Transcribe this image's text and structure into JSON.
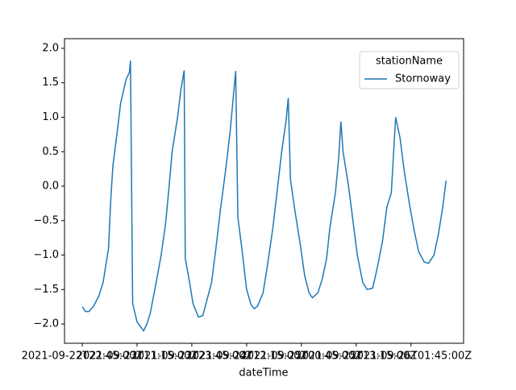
{
  "chart_data": {
    "type": "line",
    "xlabel": "dateTime",
    "legend_title": "stationName",
    "legend": "upper right",
    "x": [
      0,
      3,
      6,
      10,
      15,
      19,
      24,
      26,
      28,
      32,
      35,
      40,
      43,
      44,
      46,
      50,
      56,
      59,
      62,
      65,
      68,
      72,
      76,
      79,
      82,
      87,
      90,
      93,
      94,
      98,
      101,
      106,
      110,
      113,
      118,
      122,
      126,
      131,
      135,
      140,
      142,
      146,
      150,
      154,
      157,
      160,
      165,
      169,
      174,
      178,
      182,
      186,
      188,
      190,
      194,
      199,
      203,
      207,
      210,
      215,
      219,
      223,
      226,
      231,
      234,
      236,
      238,
      243,
      247,
      251,
      256,
      260,
      265,
      269,
      274,
      278,
      282,
      286,
      290,
      294,
      299,
      303,
      307,
      312,
      316,
      321,
      325,
      329,
      332
    ],
    "series": [
      {
        "name": "Stornoway",
        "color": "#1f77b4",
        "values": [
          -1.75,
          -1.82,
          -1.82,
          -1.75,
          -1.6,
          -1.4,
          -0.9,
          -0.2,
          0.3,
          0.8,
          1.2,
          1.55,
          1.65,
          1.82,
          -1.7,
          -1.97,
          -2.1,
          -2.0,
          -1.85,
          -1.6,
          -1.35,
          -1.0,
          -0.55,
          -0.05,
          0.5,
          1.0,
          1.4,
          1.68,
          -1.05,
          -1.4,
          -1.7,
          -1.9,
          -1.88,
          -1.7,
          -1.4,
          -0.9,
          -0.35,
          0.25,
          0.8,
          1.67,
          -0.45,
          -0.95,
          -1.5,
          -1.72,
          -1.78,
          -1.74,
          -1.55,
          -1.15,
          -0.6,
          -0.05,
          0.5,
          0.95,
          1.28,
          0.1,
          -0.35,
          -0.85,
          -1.3,
          -1.55,
          -1.62,
          -1.55,
          -1.35,
          -1.05,
          -0.6,
          -0.1,
          0.4,
          0.94,
          0.5,
          0.0,
          -0.5,
          -1.0,
          -1.4,
          -1.5,
          -1.48,
          -1.2,
          -0.8,
          -0.3,
          -0.1,
          1.0,
          0.7,
          0.2,
          -0.3,
          -0.65,
          -0.95,
          -1.1,
          -1.12,
          -1.0,
          -0.7,
          -0.3,
          0.08
        ]
      }
    ],
    "xlim": [
      -16.2,
      348
    ],
    "xticks": [
      {
        "value": 0,
        "label": "2021-09-22T22:45:00Z"
      },
      {
        "value": 50,
        "label": "2021-09-23T11:15:00Z"
      },
      {
        "value": 100,
        "label": "2021-09-23T23:45:00Z"
      },
      {
        "value": 150,
        "label": "2021-09-24T12:15:00Z"
      },
      {
        "value": 200,
        "label": "2021-09-25T00:45:00Z"
      },
      {
        "value": 250,
        "label": "2021-09-25T13:15:00Z"
      },
      {
        "value": 300,
        "label": "2021-09-26T01:45:00Z"
      }
    ],
    "ylim": [
      -2.28,
      2.14
    ],
    "yticks": [
      {
        "value": -2,
        "label": "−2.0"
      },
      {
        "value": -1.5,
        "label": "−1.5"
      },
      {
        "value": -1,
        "label": "−1.0"
      },
      {
        "value": -0.5,
        "label": "−0.5"
      },
      {
        "value": 0,
        "label": "0.0"
      },
      {
        "value": 0.5,
        "label": "0.5"
      },
      {
        "value": 1,
        "label": "1.0"
      },
      {
        "value": 1.5,
        "label": "1.5"
      },
      {
        "value": 2,
        "label": "2.0"
      }
    ]
  }
}
